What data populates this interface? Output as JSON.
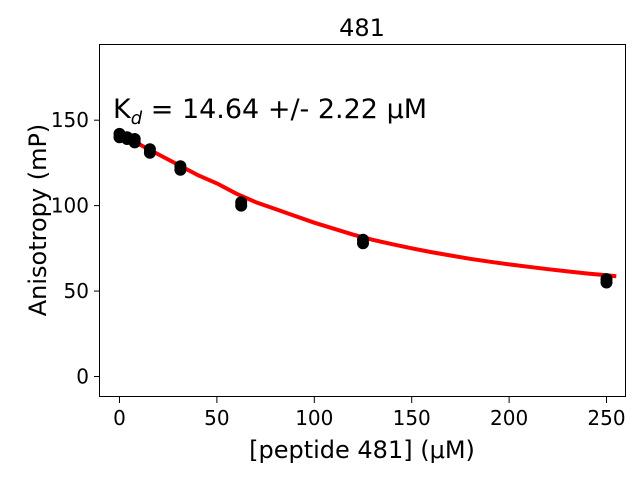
{
  "chart_data": {
    "type": "scatter",
    "title": "481",
    "annotation": {
      "prefix": "K",
      "subscript": "d",
      "text": " = 14.64 +/- 2.22 μM"
    },
    "xlabel": "[peptide 481] (μM)",
    "ylabel": "Anisotropy (mP)",
    "xlim": [
      -10,
      260
    ],
    "ylim": [
      -12,
      194
    ],
    "xticks": [
      0,
      50,
      100,
      150,
      200,
      250
    ],
    "yticks": [
      0,
      50,
      100,
      150
    ],
    "grid": false,
    "legend": "none",
    "series": [
      {
        "kind": "points",
        "color": "#000000",
        "x": [
          0,
          0,
          3.9,
          3.9,
          7.8,
          7.8,
          15.6,
          15.6,
          31.25,
          31.25,
          62.5,
          62.5,
          125,
          125,
          250,
          250
        ],
        "y": [
          142,
          140,
          140,
          139,
          139,
          137,
          133,
          131,
          123,
          121,
          102,
          100,
          80,
          78,
          57,
          55
        ]
      },
      {
        "kind": "fit",
        "color": "#ff0000",
        "x": [
          0,
          10,
          20,
          30,
          40,
          50,
          60,
          70,
          80,
          90,
          100,
          110,
          120,
          130,
          140,
          150,
          160,
          170,
          180,
          190,
          200,
          210,
          220,
          230,
          240,
          250,
          255
        ],
        "y": [
          140,
          136,
          130,
          124,
          118,
          113,
          107,
          102,
          98,
          94,
          90,
          86.5,
          83,
          80,
          77.4,
          75,
          72.8,
          70.8,
          68.9,
          67.2,
          65.6,
          64.2,
          62.8,
          61.5,
          60.3,
          59.2,
          58.7
        ]
      }
    ]
  }
}
